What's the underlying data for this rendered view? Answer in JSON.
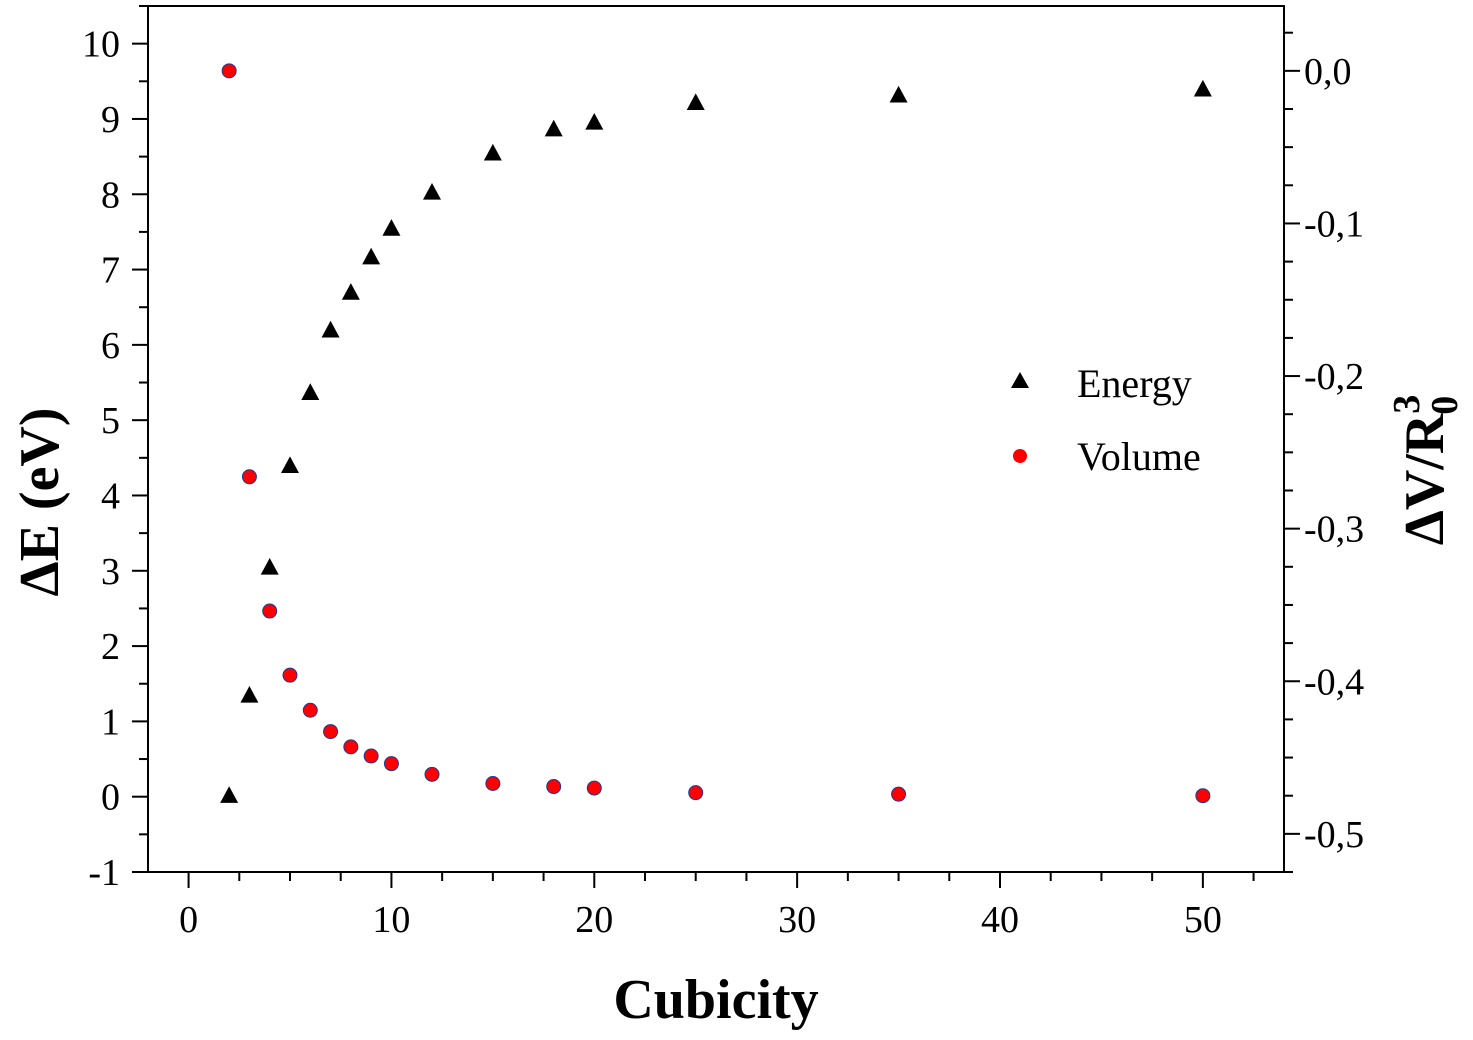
{
  "chart_data": {
    "type": "scatter",
    "title": "",
    "xlabel": "Cubicity",
    "ylabel_left": "ΔE (eV)",
    "ylabel_right": {
      "base": "ΔV/R",
      "superscript": "3",
      "subscript": "0"
    },
    "xlim": [
      -2,
      54
    ],
    "ylim_left": [
      -1,
      10.5
    ],
    "ylim_right": [
      -0.525,
      0.0425
    ],
    "x_ticks": [
      "0",
      "10",
      "20",
      "30",
      "40",
      "50"
    ],
    "y_left_ticks": [
      "-1",
      "0",
      "1",
      "2",
      "3",
      "4",
      "5",
      "6",
      "7",
      "8",
      "9",
      "10"
    ],
    "y_right_ticks": [
      "0,0",
      "-0,1",
      "-0,2",
      "-0,3",
      "-0,4",
      "-0,5"
    ],
    "legend_position": "center-right",
    "series": [
      {
        "name": "Energy",
        "axis": "left",
        "marker": "triangle",
        "color": "#000000",
        "points": [
          [
            2,
            0.02
          ],
          [
            3,
            1.35
          ],
          [
            4,
            3.05
          ],
          [
            5,
            4.4
          ],
          [
            6,
            5.37
          ],
          [
            7,
            6.2
          ],
          [
            8,
            6.7
          ],
          [
            9,
            7.17
          ],
          [
            10,
            7.55
          ],
          [
            12,
            8.03
          ],
          [
            15,
            8.55
          ],
          [
            18,
            8.87
          ],
          [
            20,
            8.96
          ],
          [
            25,
            9.22
          ],
          [
            35,
            9.32
          ],
          [
            50,
            9.4
          ]
        ]
      },
      {
        "name": "Volume",
        "axis": "right",
        "marker": "circle",
        "color": "#ff0000",
        "edge_color": "#1a3a9a",
        "points": [
          [
            2,
            0.0
          ],
          [
            3,
            -0.266
          ],
          [
            4,
            -0.354
          ],
          [
            5,
            -0.396
          ],
          [
            6,
            -0.419
          ],
          [
            7,
            -0.433
          ],
          [
            8,
            -0.443
          ],
          [
            9,
            -0.449
          ],
          [
            10,
            -0.454
          ],
          [
            12,
            -0.461
          ],
          [
            15,
            -0.467
          ],
          [
            18,
            -0.469
          ],
          [
            20,
            -0.47
          ],
          [
            25,
            -0.473
          ],
          [
            35,
            -0.474
          ],
          [
            50,
            -0.475
          ]
        ]
      }
    ]
  }
}
